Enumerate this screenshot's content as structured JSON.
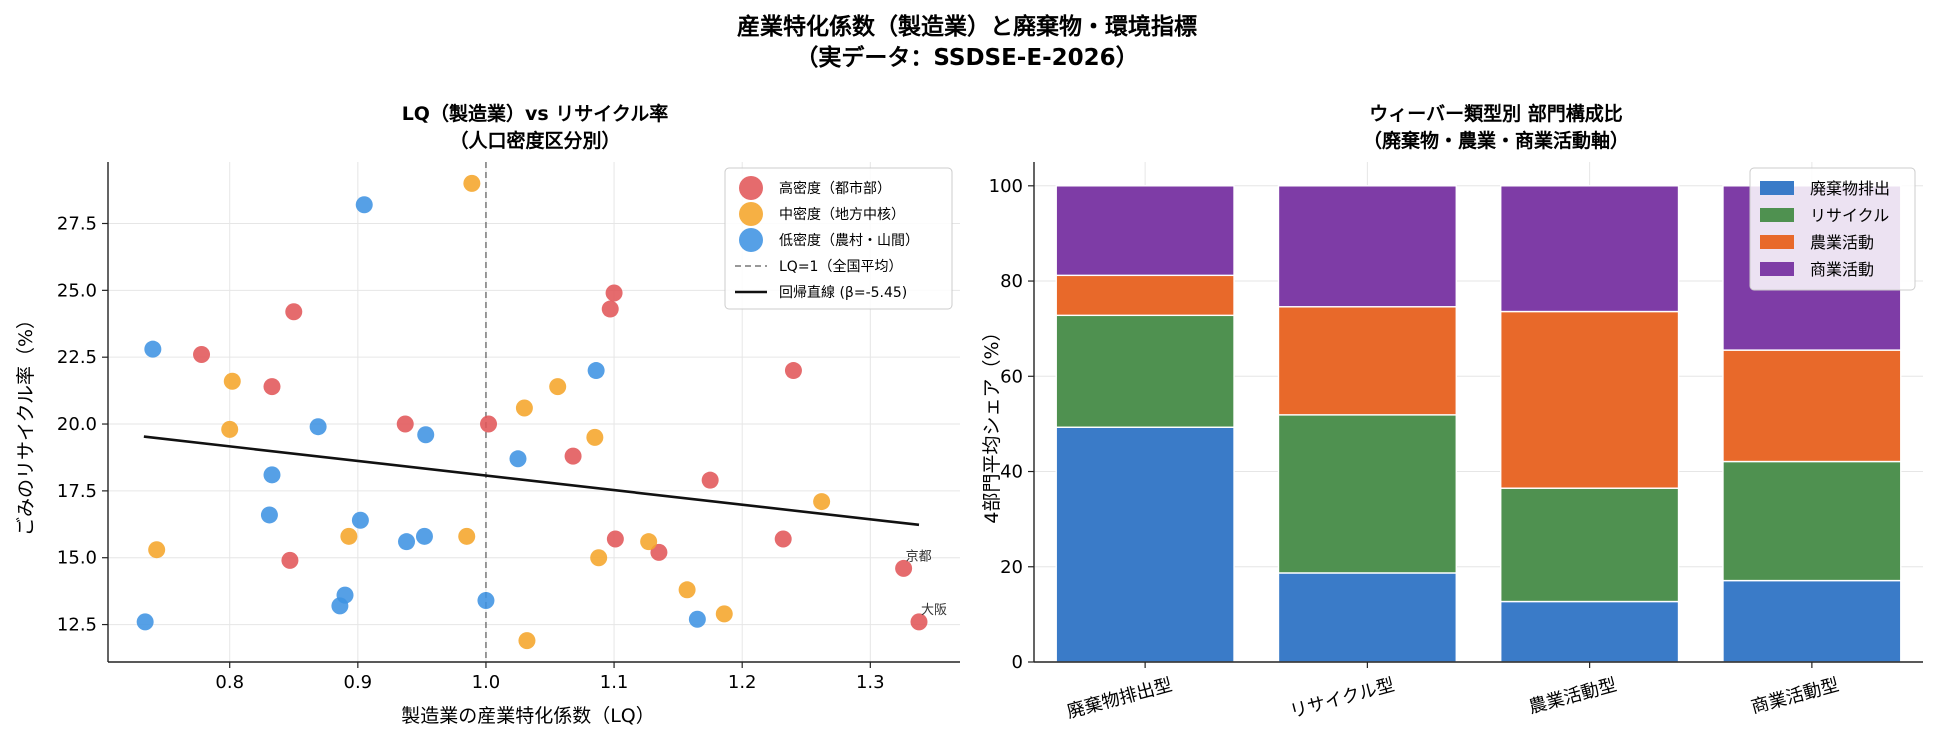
{
  "figure": {
    "title_line1": "産業特化係数（製造業）と廃棄物・環境指標",
    "title_line2": "（実データ：SSDSE-E-2026）"
  },
  "colors": {
    "high": "#e15759",
    "mid": "#f5a52a",
    "low": "#3f93e3",
    "waste": "#3a7bc8",
    "recycle": "#4f9150",
    "agri": "#e8692a",
    "commerce": "#7e3ca6"
  },
  "chart_data": [
    {
      "type": "scatter",
      "title_line1": "LQ（製造業）vs リサイクル率",
      "title_line2": "（人口密度区分別）",
      "xlabel": "製造業の産業特化係数（LQ）",
      "ylabel": "ごみのリサイクル率（%）",
      "xlim": [
        0.705,
        1.37
      ],
      "ylim": [
        11.1,
        29.8
      ],
      "xticks": [
        0.8,
        0.9,
        1.0,
        1.1,
        1.2,
        1.3
      ],
      "xtick_labels": [
        "0.8",
        "0.9",
        "1.0",
        "1.1",
        "1.2",
        "1.3"
      ],
      "yticks": [
        12.5,
        15.0,
        17.5,
        20.0,
        22.5,
        25.0,
        27.5
      ],
      "ytick_labels": [
        "12.5",
        "15.0",
        "17.5",
        "20.0",
        "22.5",
        "25.0",
        "27.5"
      ],
      "grid": true,
      "legend_position": "top-right",
      "series": [
        {
          "name": "高密度（都市部）",
          "color_key": "high",
          "points": [
            [
              0.778,
              22.6
            ],
            [
              0.833,
              21.4
            ],
            [
              0.85,
              24.2
            ],
            [
              0.847,
              14.9
            ],
            [
              0.937,
              20.0
            ],
            [
              1.002,
              20.0
            ],
            [
              1.068,
              18.8
            ],
            [
              1.097,
              24.3
            ],
            [
              1.1,
              24.9
            ],
            [
              1.101,
              15.7
            ],
            [
              1.135,
              15.2
            ],
            [
              1.175,
              17.9
            ],
            [
              1.232,
              15.7
            ],
            [
              1.24,
              22.0
            ],
            [
              1.326,
              14.6
            ],
            [
              1.338,
              12.6
            ]
          ]
        },
        {
          "name": "中密度（地方中核）",
          "color_key": "mid",
          "points": [
            [
              0.743,
              15.3
            ],
            [
              0.8,
              19.8
            ],
            [
              0.802,
              21.6
            ],
            [
              0.893,
              15.8
            ],
            [
              0.985,
              15.8
            ],
            [
              0.989,
              29.0
            ],
            [
              1.03,
              20.6
            ],
            [
              1.032,
              11.9
            ],
            [
              1.056,
              21.4
            ],
            [
              1.085,
              19.5
            ],
            [
              1.088,
              15.0
            ],
            [
              1.127,
              15.6
            ],
            [
              1.157,
              13.8
            ],
            [
              1.186,
              12.9
            ],
            [
              1.262,
              17.1
            ]
          ]
        },
        {
          "name": "低密度（農村・山間）",
          "color_key": "low",
          "points": [
            [
              0.734,
              12.6
            ],
            [
              0.74,
              22.8
            ],
            [
              0.831,
              16.6
            ],
            [
              0.833,
              18.1
            ],
            [
              0.869,
              19.9
            ],
            [
              0.886,
              13.2
            ],
            [
              0.89,
              13.6
            ],
            [
              0.902,
              16.4
            ],
            [
              0.905,
              28.2
            ],
            [
              0.938,
              15.6
            ],
            [
              0.952,
              15.8
            ],
            [
              0.953,
              19.6
            ],
            [
              1.0,
              13.4
            ],
            [
              1.025,
              18.7
            ],
            [
              1.086,
              22.0
            ],
            [
              1.165,
              12.7
            ]
          ]
        }
      ],
      "reference_line": {
        "name": "LQ=1（全国平均）",
        "x": 1.0
      },
      "regression_line": {
        "name": "回帰直線 (β=-5.45)",
        "x": [
          0.733,
          1.338
        ],
        "y": [
          19.53,
          16.23
        ]
      },
      "annotations": [
        {
          "text": "京都",
          "x": 1.326,
          "y": 14.6
        },
        {
          "text": "大阪",
          "x": 1.338,
          "y": 12.6
        }
      ]
    },
    {
      "type": "bar",
      "stacked": true,
      "title_line1": "ウィーバー類型別 部門構成比",
      "title_line2": "（廃棄物・農業・商業活動軸）",
      "xlabel": "",
      "ylabel": "4部門平均シェア（%）",
      "ylim": [
        0,
        105
      ],
      "yticks": [
        0,
        20,
        40,
        60,
        80,
        100
      ],
      "ytick_labels": [
        "0",
        "20",
        "40",
        "60",
        "80",
        "100"
      ],
      "categories": [
        "廃棄物排出型",
        "リサイクル型",
        "農業活動型",
        "商業活動型"
      ],
      "grid": true,
      "legend_position": "top-right",
      "series": [
        {
          "name": "廃棄物排出",
          "color_key": "waste",
          "values": [
            49.3,
            18.7,
            12.7,
            17.1
          ]
        },
        {
          "name": "リサイクル",
          "color_key": "recycle",
          "values": [
            23.5,
            33.2,
            23.8,
            25.0
          ]
        },
        {
          "name": "農業活動",
          "color_key": "agri",
          "values": [
            8.4,
            22.7,
            37.1,
            23.4
          ]
        },
        {
          "name": "商業活動",
          "color_key": "commerce",
          "values": [
            18.8,
            25.4,
            26.4,
            34.5
          ]
        }
      ]
    }
  ]
}
